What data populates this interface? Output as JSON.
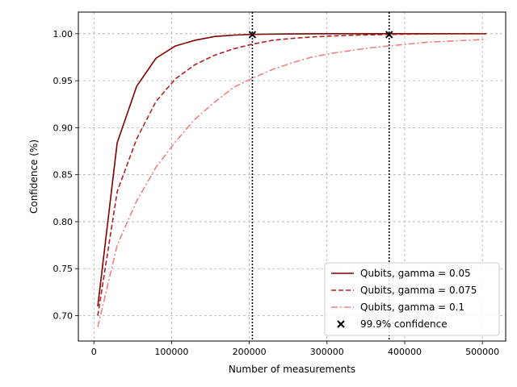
{
  "chart_data": {
    "type": "line",
    "title": "",
    "xlabel": "Number of measurements",
    "ylabel": "Confidence (%)",
    "xlim": [
      -20000,
      530000
    ],
    "ylim": [
      0.673,
      1.023
    ],
    "xticks": [
      0,
      100000,
      200000,
      300000,
      400000,
      500000
    ],
    "xtick_labels": [
      "0",
      "100000",
      "200000",
      "300000",
      "400000",
      "500000"
    ],
    "yticks": [
      0.7,
      0.75,
      0.8,
      0.85,
      0.9,
      0.95,
      1.0
    ],
    "ytick_labels": [
      "0.70",
      "0.75",
      "0.80",
      "0.85",
      "0.90",
      "0.95",
      "1.00"
    ],
    "grid": true,
    "legend_position": "lower-right",
    "series": [
      {
        "name": "Qubits, gamma = 0.05",
        "color": "#7f0000",
        "dash": "solid",
        "x": [
          5000,
          30000,
          55000,
          80000,
          105000,
          130000,
          155000,
          180000,
          205000,
          230000,
          255000,
          280000,
          305000,
          330000,
          355000,
          380000,
          405000,
          430000,
          455000,
          480000,
          505000
        ],
        "y": [
          0.71,
          0.884,
          0.944,
          0.974,
          0.987,
          0.993,
          0.997,
          0.9985,
          0.9993,
          0.9996,
          0.9998,
          0.9999,
          1.0,
          1.0,
          1.0,
          1.0,
          1.0,
          1.0,
          1.0,
          1.0,
          1.0
        ]
      },
      {
        "name": "Qubits, gamma = 0.075",
        "color": "#b22222",
        "dash": "dashed",
        "x": [
          5000,
          30000,
          55000,
          80000,
          105000,
          130000,
          155000,
          180000,
          205000,
          230000,
          255000,
          280000,
          305000,
          330000,
          355000,
          380000,
          405000,
          430000,
          455000,
          480000,
          505000
        ],
        "y": [
          0.7,
          0.832,
          0.888,
          0.928,
          0.952,
          0.967,
          0.977,
          0.984,
          0.989,
          0.993,
          0.995,
          0.9965,
          0.9975,
          0.9983,
          0.9988,
          0.9992,
          0.9995,
          0.9997,
          0.9998,
          0.9999,
          1.0
        ]
      },
      {
        "name": "Qubits, gamma = 0.1",
        "color": "#f08080",
        "dash": "dashdot",
        "x": [
          5000,
          30000,
          55000,
          80000,
          105000,
          130000,
          155000,
          180000,
          205000,
          230000,
          255000,
          280000,
          305000,
          330000,
          355000,
          380000,
          405000,
          430000,
          455000,
          480000,
          505000
        ],
        "y": [
          0.688,
          0.775,
          0.822,
          0.858,
          0.885,
          0.909,
          0.927,
          0.943,
          0.953,
          0.962,
          0.969,
          0.975,
          0.979,
          0.982,
          0.985,
          0.987,
          0.989,
          0.991,
          0.992,
          0.993,
          0.994
        ]
      }
    ],
    "vlines": [
      {
        "x": 204000,
        "color": "#000000",
        "dash": "dotted"
      },
      {
        "x": 380000,
        "color": "#000000",
        "dash": "dotted"
      }
    ],
    "markers": {
      "name": "99.9% confidence",
      "symbol": "x",
      "color": "#000000",
      "points": [
        {
          "x": 204000,
          "y": 0.999
        },
        {
          "x": 380000,
          "y": 0.999
        }
      ]
    }
  }
}
